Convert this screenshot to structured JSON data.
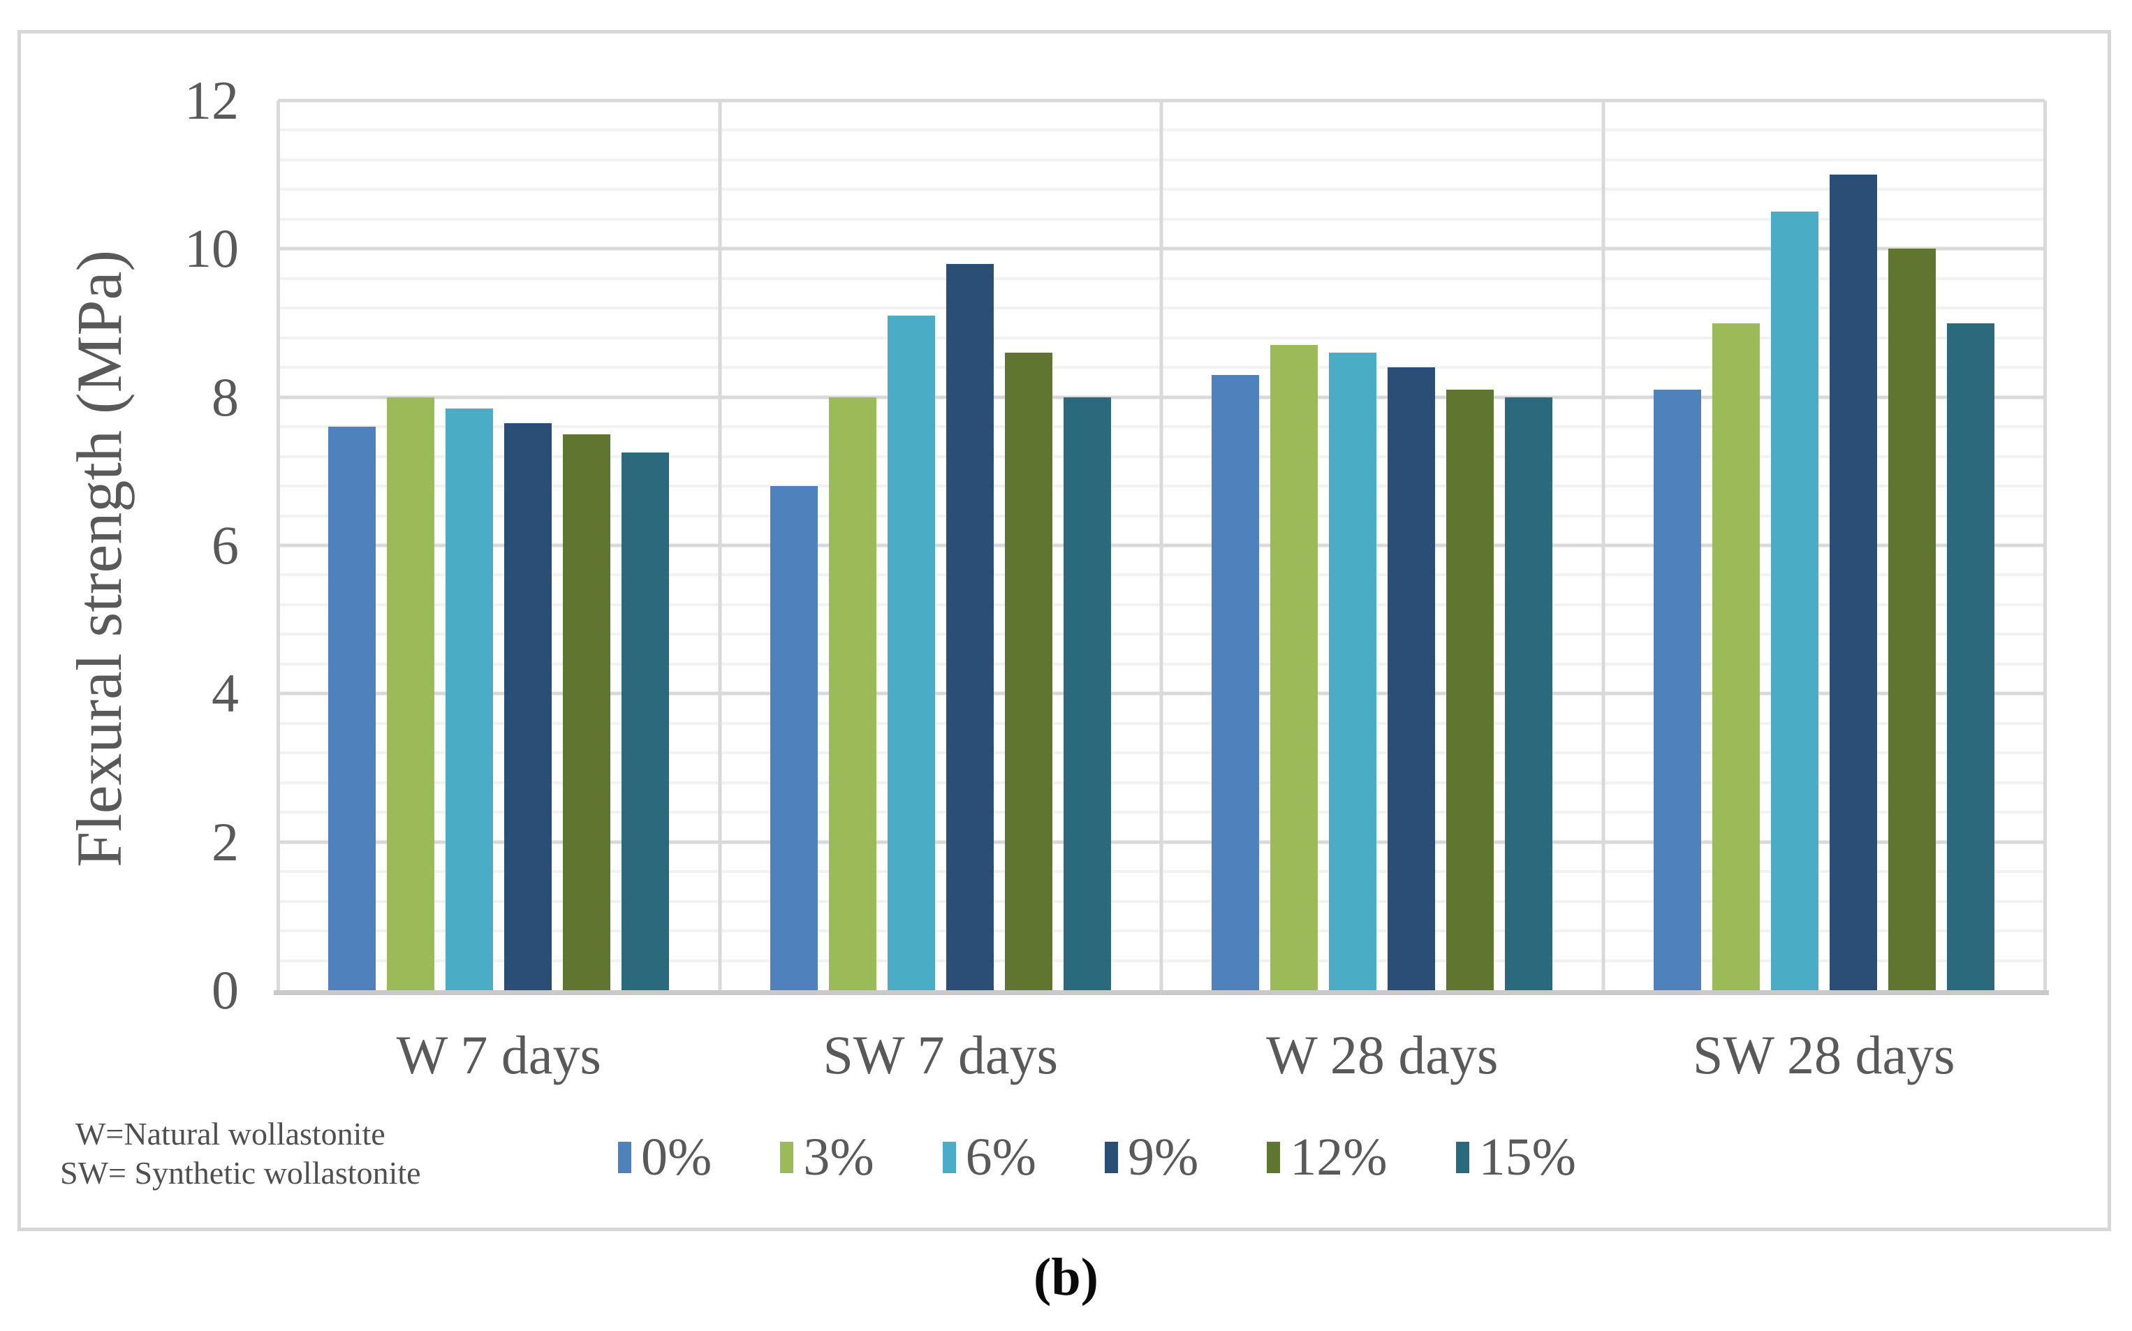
{
  "figure": {
    "caption": "(b)",
    "note_lines": [
      "W=Natural wollastonite",
      "SW= Synthetic wollastonite"
    ],
    "y_axis": {
      "title": "Flexural strength (MPa)",
      "tick_labels": [
        "0",
        "2",
        "4",
        "6",
        "8",
        "10",
        "12"
      ],
      "major_unit": 2,
      "minor_unit": 0.4
    },
    "style_colors": {
      "major_gridline": "#d9d9d9",
      "minor_gridline": "#f2f2f2",
      "axis_line": "#c9c9c9",
      "frame_border": "#d6d6d6",
      "text": "#595959"
    }
  },
  "chart_data": {
    "type": "bar",
    "title": "",
    "xlabel": "",
    "ylabel": "Flexural strength (MPa)",
    "ylim": [
      0,
      12
    ],
    "grid": "major and minor horizontal gridlines, vertical category dividers",
    "legend_position": "bottom",
    "categories": [
      "W 7 days",
      "SW 7 days",
      "W 28 days",
      "SW 28 days"
    ],
    "series": [
      {
        "name": "0%",
        "color": "#4F81BD",
        "values": [
          7.6,
          6.8,
          8.3,
          8.1
        ]
      },
      {
        "name": "3%",
        "color": "#9BBB59",
        "values": [
          8.0,
          8.0,
          8.7,
          9.0
        ]
      },
      {
        "name": "6%",
        "color": "#4BACC6",
        "values": [
          7.85,
          9.1,
          8.6,
          10.5
        ]
      },
      {
        "name": "9%",
        "color": "#2A4E76",
        "values": [
          7.65,
          9.8,
          8.4,
          11.0
        ]
      },
      {
        "name": "12%",
        "color": "#5F7530",
        "values": [
          7.5,
          8.6,
          8.1,
          10.0
        ]
      },
      {
        "name": "15%",
        "color": "#2B6A7C",
        "values": [
          7.25,
          8.0,
          8.0,
          9.0
        ]
      }
    ]
  }
}
